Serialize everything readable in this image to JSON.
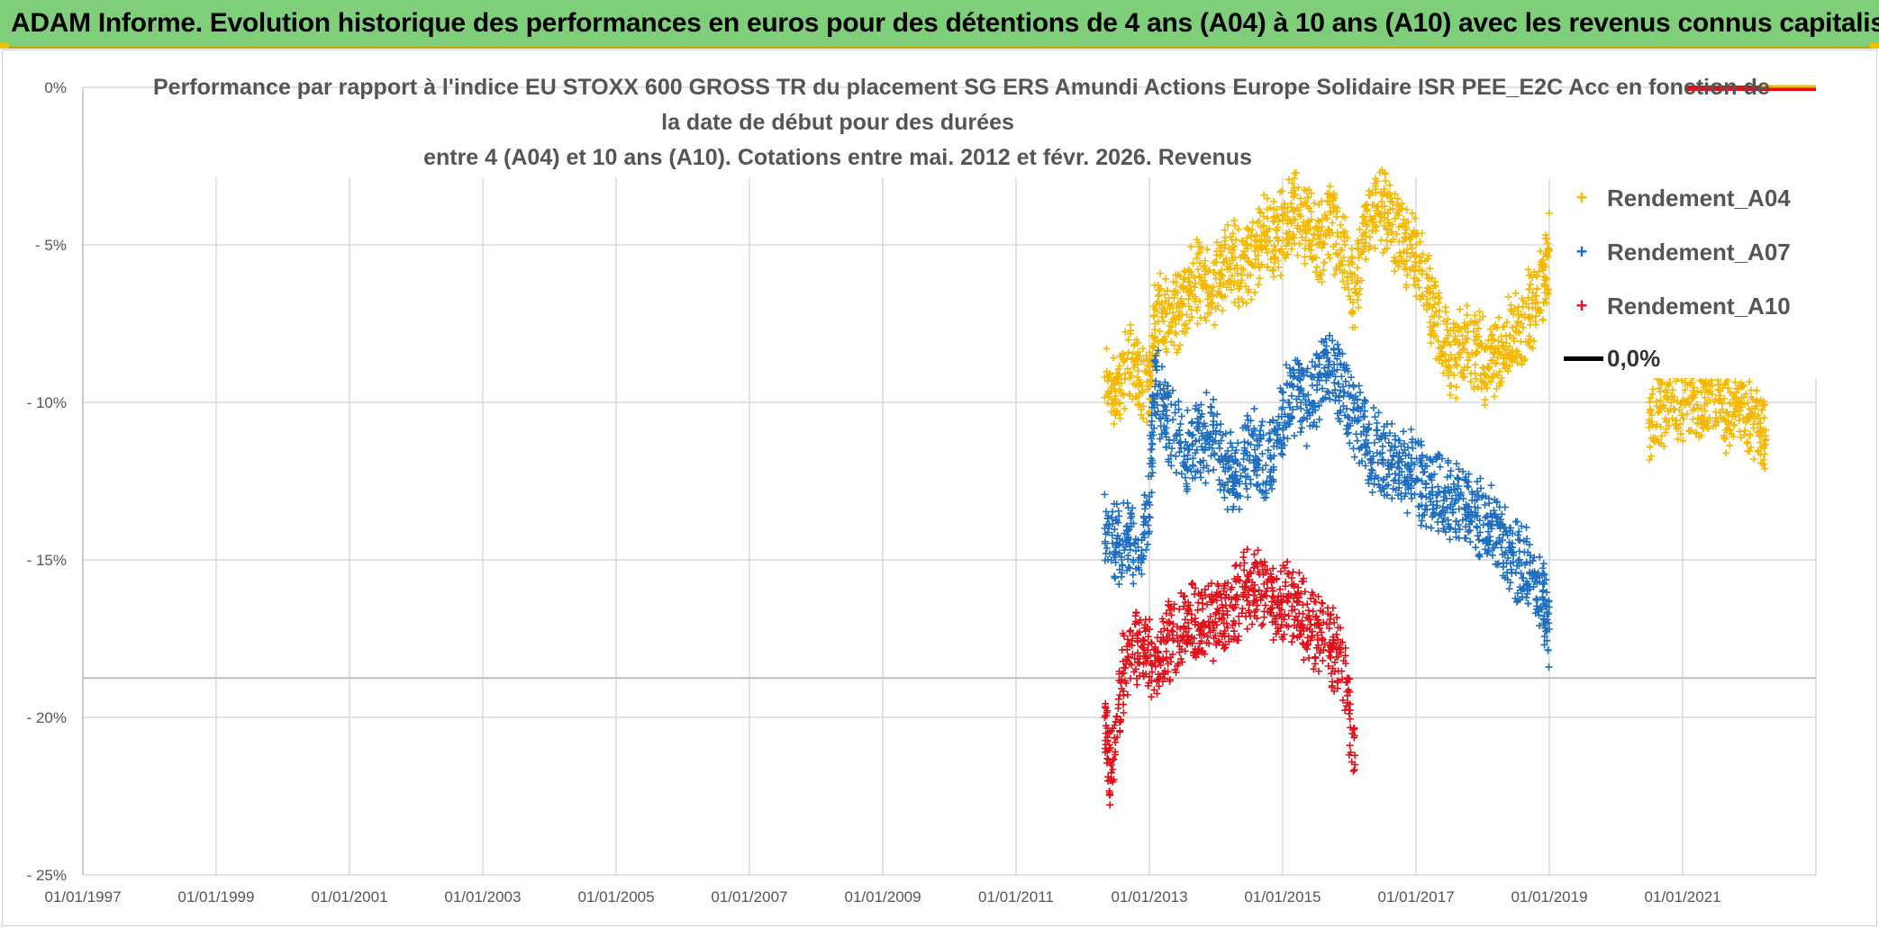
{
  "banner": {
    "title": "ADAM Informe. Evolution historique des performances en euros pour des détentions de 4 ans (A04) à 10 ans (A10) avec les revenus connus capitalisés"
  },
  "colors": {
    "banner_bg": "#7fcf7a",
    "A04": "#f5b800",
    "A07": "#1f6fc0",
    "A10": "#e0101a",
    "zero_line": "#000000"
  },
  "chart_data": {
    "type": "scatter",
    "title_lines": [
      "Performance par rapport à l'indice EU STOXX 600 GROSS TR  du placement SG ERS Amundi Actions Europe Solidaire ISR PEE_E2C Acc en fonction de",
      "la date de début pour des durées",
      "entre 4 (A04) et 10 ans (A10). Cotations entre mai. 2012 et févr. 2026. Revenus"
    ],
    "xlabel": "",
    "ylabel": "",
    "x_range": [
      "1997-01-01",
      "2023-01-01"
    ],
    "ylim": [
      -25,
      0
    ],
    "y_ticks": [
      0,
      -5,
      -10,
      -15,
      -20,
      -25
    ],
    "y_tick_labels": [
      "0%",
      "- 5%",
      "- 10%",
      "- 15%",
      "- 20%",
      "- 25%"
    ],
    "x_tick_labels": [
      "01/01/1997",
      "01/01/1999",
      "01/01/2001",
      "01/01/2003",
      "01/01/2005",
      "01/01/2007",
      "01/01/2009",
      "01/01/2011",
      "01/01/2013",
      "01/01/2015",
      "01/01/2017",
      "01/01/2019",
      "01/01/2021"
    ],
    "grid": true,
    "legend_position": "right",
    "legend": [
      {
        "name": "Rendement_A04",
        "marker": "+"
      },
      {
        "name": "Rendement_A07",
        "marker": "+"
      },
      {
        "name": "Rendement_A10",
        "marker": "+"
      },
      {
        "name": "0,0%",
        "marker": "line"
      }
    ],
    "series": [
      {
        "name": "Rendement_A04",
        "points": [
          [
            "2012-05-01",
            -9.2
          ],
          [
            "2012-07-01",
            -9.8
          ],
          [
            "2012-09-01",
            -8.6
          ],
          [
            "2012-11-01",
            -9.0
          ],
          [
            "2013-01-01",
            -9.5
          ],
          [
            "2013-02-01",
            -7.5
          ],
          [
            "2013-04-01",
            -7.2
          ],
          [
            "2013-06-01",
            -7.0
          ],
          [
            "2013-08-01",
            -6.5
          ],
          [
            "2013-10-01",
            -6.0
          ],
          [
            "2013-12-01",
            -6.6
          ],
          [
            "2014-02-01",
            -5.8
          ],
          [
            "2014-04-01",
            -5.4
          ],
          [
            "2014-06-01",
            -5.8
          ],
          [
            "2014-08-01",
            -5.2
          ],
          [
            "2014-10-01",
            -4.6
          ],
          [
            "2014-12-01",
            -4.8
          ],
          [
            "2015-02-01",
            -4.2
          ],
          [
            "2015-04-01",
            -3.9
          ],
          [
            "2015-06-01",
            -4.5
          ],
          [
            "2015-08-01",
            -4.9
          ],
          [
            "2015-10-01",
            -4.3
          ],
          [
            "2015-12-01",
            -5.4
          ],
          [
            "2016-02-01",
            -6.5
          ],
          [
            "2016-04-01",
            -4.6
          ],
          [
            "2016-06-01",
            -3.8
          ],
          [
            "2016-08-01",
            -4.2
          ],
          [
            "2016-10-01",
            -4.9
          ],
          [
            "2016-12-01",
            -5.0
          ],
          [
            "2017-02-01",
            -5.8
          ],
          [
            "2017-04-01",
            -7.0
          ],
          [
            "2017-06-01",
            -8.2
          ],
          [
            "2017-08-01",
            -8.6
          ],
          [
            "2017-10-01",
            -8.0
          ],
          [
            "2017-12-01",
            -8.4
          ],
          [
            "2018-02-01",
            -8.9
          ],
          [
            "2018-04-01",
            -8.4
          ],
          [
            "2018-06-01",
            -7.9
          ],
          [
            "2018-08-01",
            -7.5
          ],
          [
            "2018-10-01",
            -7.0
          ],
          [
            "2018-12-01",
            -6.0
          ],
          [
            "2019-01-01",
            -5.2
          ],
          [
            "2020-07-01",
            -10.8
          ],
          [
            "2020-09-01",
            -10.2
          ],
          [
            "2020-11-01",
            -9.8
          ],
          [
            "2021-01-01",
            -10.0
          ],
          [
            "2021-03-01",
            -9.7
          ],
          [
            "2021-05-01",
            -10.1
          ],
          [
            "2021-07-01",
            -9.9
          ],
          [
            "2021-09-01",
            -10.3
          ],
          [
            "2021-11-01",
            -10.0
          ],
          [
            "2022-01-01",
            -10.4
          ],
          [
            "2022-03-01",
            -10.9
          ],
          [
            "2022-04-01",
            -11.2
          ]
        ]
      },
      {
        "name": "Rendement_A07",
        "points": [
          [
            "2012-05-01",
            -14.0
          ],
          [
            "2012-07-01",
            -14.6
          ],
          [
            "2012-09-01",
            -14.2
          ],
          [
            "2012-11-01",
            -15.0
          ],
          [
            "2013-01-01",
            -13.0
          ],
          [
            "2013-02-01",
            -9.5
          ],
          [
            "2013-04-01",
            -10.5
          ],
          [
            "2013-06-01",
            -11.0
          ],
          [
            "2013-08-01",
            -11.5
          ],
          [
            "2013-10-01",
            -11.2
          ],
          [
            "2013-12-01",
            -11.0
          ],
          [
            "2014-02-01",
            -11.8
          ],
          [
            "2014-04-01",
            -12.3
          ],
          [
            "2014-06-01",
            -11.8
          ],
          [
            "2014-08-01",
            -11.5
          ],
          [
            "2014-10-01",
            -12.0
          ],
          [
            "2014-12-01",
            -11.2
          ],
          [
            "2015-02-01",
            -10.0
          ],
          [
            "2015-04-01",
            -9.6
          ],
          [
            "2015-06-01",
            -10.1
          ],
          [
            "2015-08-01",
            -9.2
          ],
          [
            "2015-10-01",
            -9.0
          ],
          [
            "2015-12-01",
            -9.8
          ],
          [
            "2016-02-01",
            -10.5
          ],
          [
            "2016-04-01",
            -11.2
          ],
          [
            "2016-06-01",
            -11.6
          ],
          [
            "2016-08-01",
            -11.9
          ],
          [
            "2016-10-01",
            -12.1
          ],
          [
            "2016-12-01",
            -12.3
          ],
          [
            "2017-02-01",
            -12.5
          ],
          [
            "2017-04-01",
            -12.7
          ],
          [
            "2017-06-01",
            -13.0
          ],
          [
            "2017-08-01",
            -13.2
          ],
          [
            "2017-10-01",
            -13.4
          ],
          [
            "2017-12-01",
            -13.6
          ],
          [
            "2018-02-01",
            -13.9
          ],
          [
            "2018-04-01",
            -14.3
          ],
          [
            "2018-06-01",
            -14.7
          ],
          [
            "2018-08-01",
            -15.1
          ],
          [
            "2018-10-01",
            -15.6
          ],
          [
            "2018-12-01",
            -16.4
          ],
          [
            "2019-01-01",
            -17.2
          ]
        ]
      },
      {
        "name": "Rendement_A10",
        "points": [
          [
            "2012-05-01",
            -20.0
          ],
          [
            "2012-06-01",
            -22.0
          ],
          [
            "2012-08-01",
            -18.8
          ],
          [
            "2012-10-01",
            -18.0
          ],
          [
            "2012-12-01",
            -17.8
          ],
          [
            "2013-02-01",
            -18.2
          ],
          [
            "2013-04-01",
            -17.6
          ],
          [
            "2013-06-01",
            -17.4
          ],
          [
            "2013-08-01",
            -17.0
          ],
          [
            "2013-10-01",
            -17.2
          ],
          [
            "2013-12-01",
            -16.8
          ],
          [
            "2014-02-01",
            -16.9
          ],
          [
            "2014-04-01",
            -16.5
          ],
          [
            "2014-06-01",
            -16.1
          ],
          [
            "2014-08-01",
            -15.8
          ],
          [
            "2014-10-01",
            -16.0
          ],
          [
            "2014-12-01",
            -16.4
          ],
          [
            "2015-02-01",
            -16.2
          ],
          [
            "2015-04-01",
            -16.7
          ],
          [
            "2015-06-01",
            -16.9
          ],
          [
            "2015-08-01",
            -17.3
          ],
          [
            "2015-10-01",
            -17.8
          ],
          [
            "2015-12-01",
            -18.2
          ],
          [
            "2016-02-01",
            -21.5
          ]
        ]
      },
      {
        "name": "0,0%",
        "type": "line",
        "y": 0
      }
    ]
  }
}
